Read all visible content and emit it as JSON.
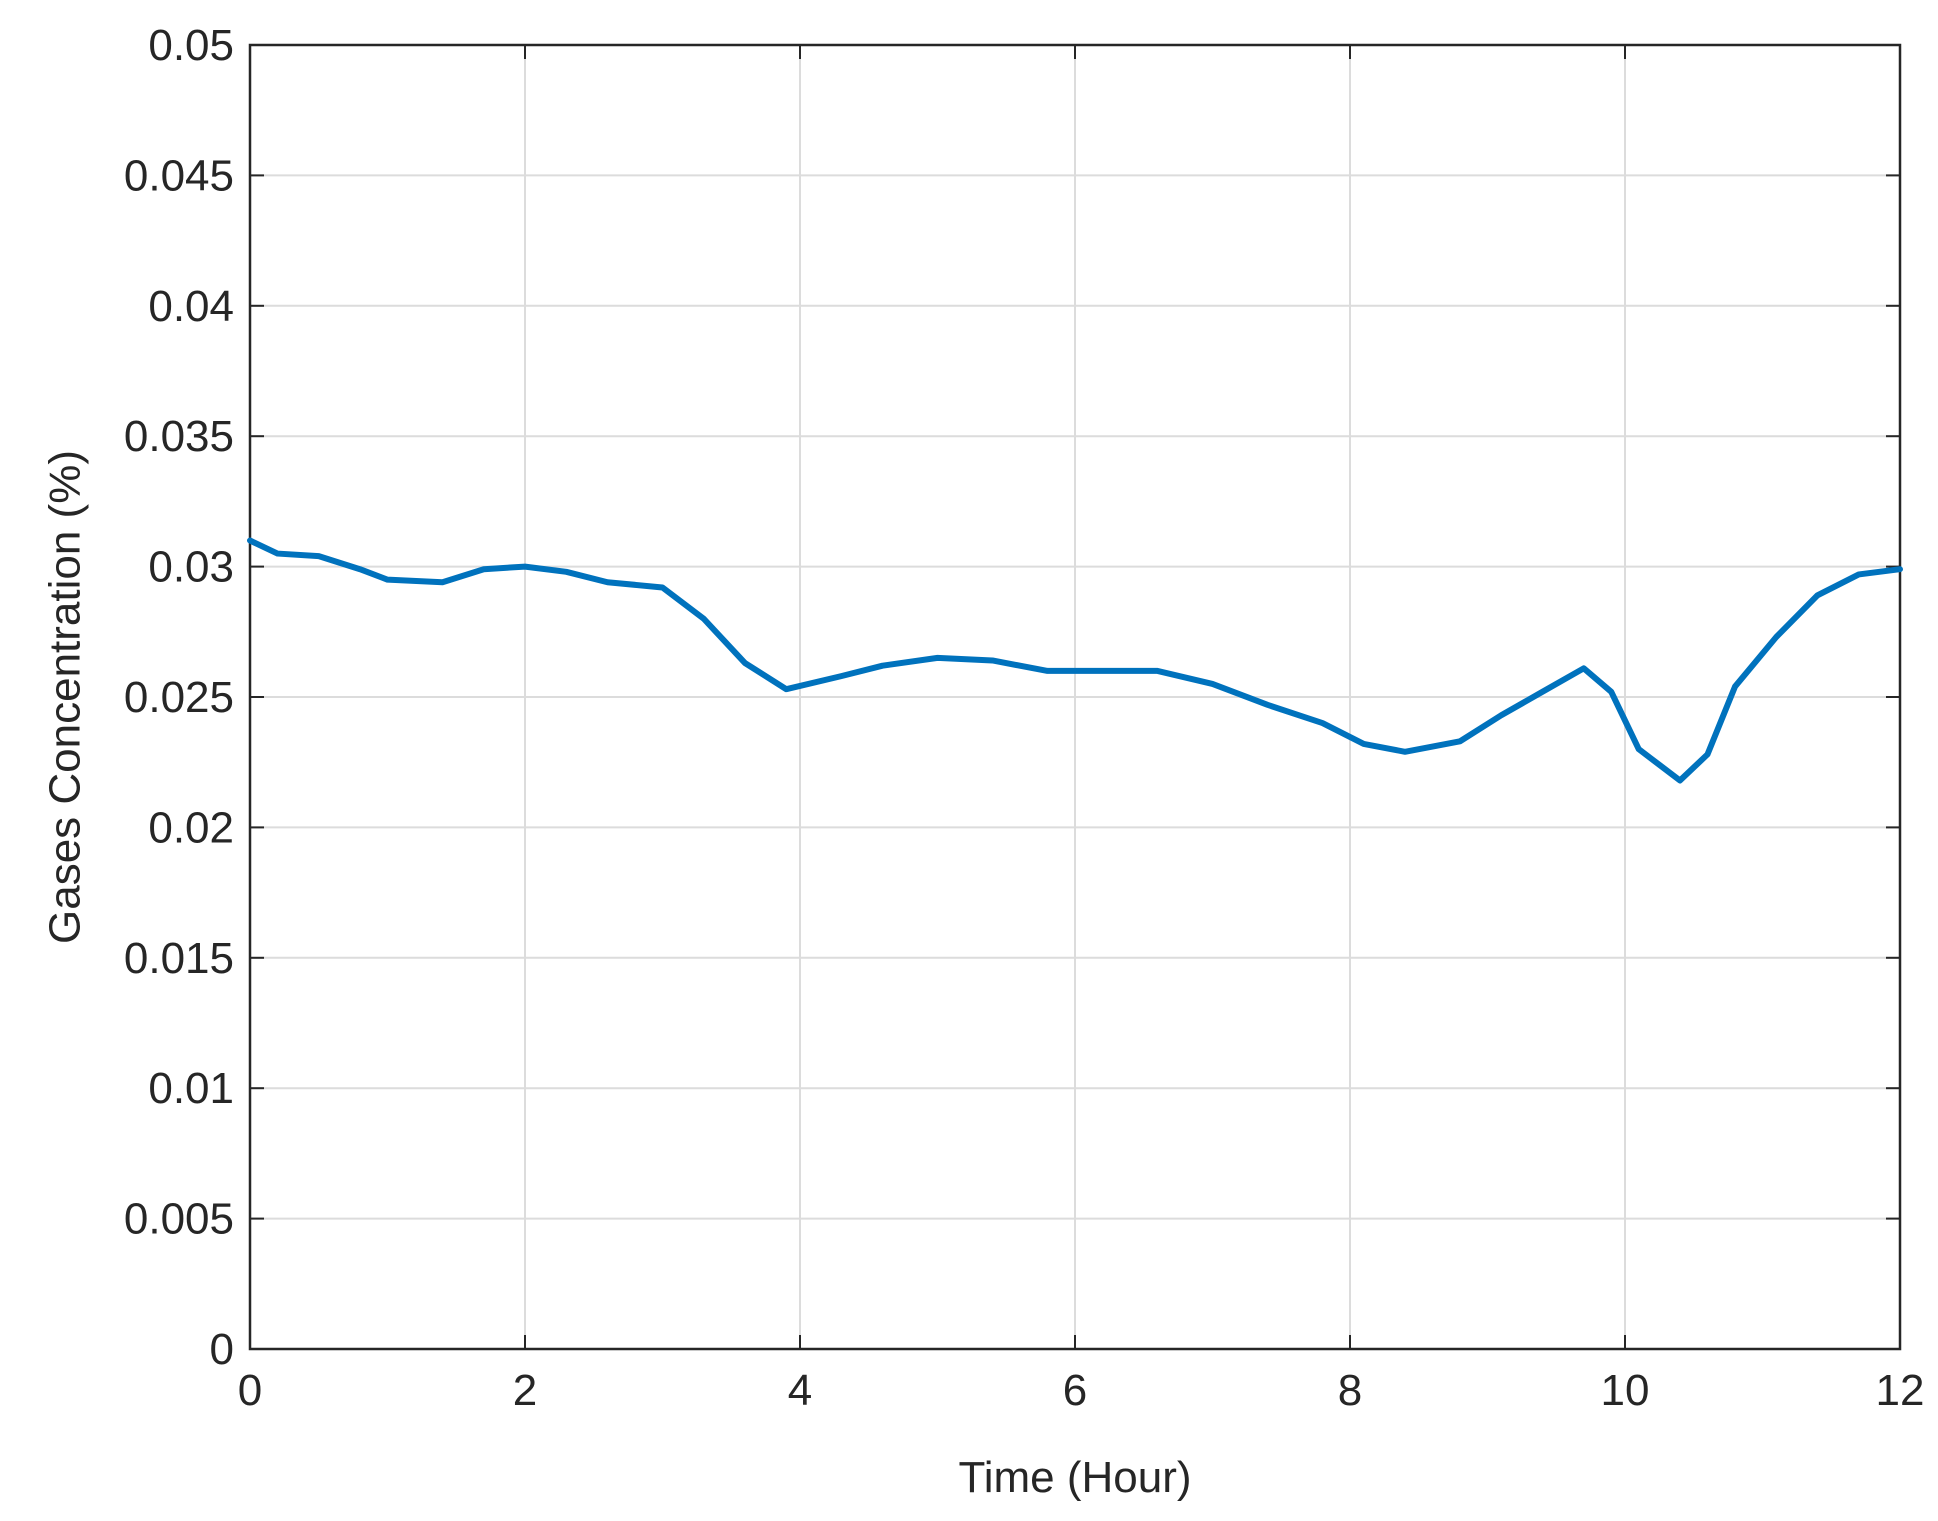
{
  "chart_data": {
    "type": "line",
    "xlabel": "Time (Hour)",
    "ylabel": "Gases Concentration (%)",
    "x": [
      0,
      0.2,
      0.5,
      0.8,
      1.0,
      1.4,
      1.7,
      2.0,
      2.3,
      2.6,
      3.0,
      3.3,
      3.6,
      3.9,
      4.3,
      4.6,
      5.0,
      5.4,
      5.8,
      6.2,
      6.6,
      7.0,
      7.4,
      7.8,
      8.1,
      8.4,
      8.8,
      9.1,
      9.4,
      9.7,
      9.9,
      10.1,
      10.4,
      10.6,
      10.8,
      11.1,
      11.4,
      11.7,
      12.0
    ],
    "series": [
      {
        "color": "#0072bd",
        "values": [
          0.031,
          0.0305,
          0.0304,
          0.0299,
          0.0295,
          0.0294,
          0.0299,
          0.03,
          0.0298,
          0.0294,
          0.0292,
          0.028,
          0.0263,
          0.0253,
          0.0258,
          0.0262,
          0.0265,
          0.0264,
          0.026,
          0.026,
          0.026,
          0.0255,
          0.0247,
          0.024,
          0.0232,
          0.0229,
          0.0233,
          0.0243,
          0.0252,
          0.0261,
          0.0252,
          0.023,
          0.0218,
          0.0228,
          0.0254,
          0.0273,
          0.0289,
          0.0297,
          0.0299
        ]
      }
    ],
    "xlim": [
      0,
      12
    ],
    "xticks": [
      0,
      2,
      4,
      6,
      8,
      10,
      12
    ],
    "ylim": [
      0,
      0.05
    ],
    "yticks": [
      0,
      0.005,
      0.01,
      0.015,
      0.02,
      0.025,
      0.03,
      0.035,
      0.04,
      0.045,
      0.05
    ],
    "grid": true
  }
}
